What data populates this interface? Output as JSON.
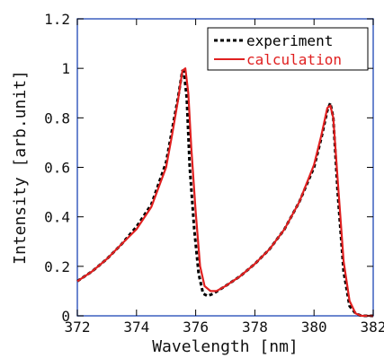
{
  "chart_data": {
    "type": "line",
    "xlabel": "Wavelength [nm]",
    "ylabel": "Intensity [arb.unit]",
    "xlim": [
      372,
      382
    ],
    "ylim": [
      0,
      1.2
    ],
    "x_ticks": [
      372,
      374,
      376,
      378,
      380,
      382
    ],
    "x_tick_labels": [
      "372",
      "374",
      "376",
      "378",
      "380",
      "382"
    ],
    "y_ticks": [
      0,
      0.2,
      0.4,
      0.6,
      0.8,
      1,
      1.2
    ],
    "y_tick_labels": [
      "0",
      "0.2",
      "0.4",
      "0.6",
      "0.8",
      "1",
      "1.2"
    ],
    "grid": false,
    "legend_position": "top-right",
    "frame_color": "#3b5fbf",
    "series": [
      {
        "name": "experiment",
        "color": "#000000",
        "style": "dashed",
        "x": [
          372,
          372.5,
          373,
          373.5,
          374,
          374.5,
          375,
          375.2,
          375.4,
          375.55,
          375.6,
          375.7,
          375.8,
          375.95,
          376.1,
          376.25,
          376.4,
          376.6,
          377,
          377.5,
          378,
          378.5,
          379,
          379.5,
          380,
          380.25,
          380.45,
          380.55,
          380.65,
          380.8,
          381,
          381.2,
          381.4,
          381.6,
          382
        ],
        "y": [
          0.14,
          0.18,
          0.23,
          0.29,
          0.36,
          0.45,
          0.62,
          0.75,
          0.88,
          0.99,
          0.99,
          0.88,
          0.6,
          0.35,
          0.17,
          0.09,
          0.08,
          0.09,
          0.12,
          0.16,
          0.21,
          0.27,
          0.35,
          0.46,
          0.6,
          0.72,
          0.83,
          0.86,
          0.8,
          0.5,
          0.18,
          0.04,
          0.01,
          0,
          0
        ]
      },
      {
        "name": "calculation",
        "color": "#e02020",
        "style": "solid",
        "x": [
          372,
          372.5,
          373,
          373.5,
          374,
          374.5,
          375,
          375.2,
          375.4,
          375.55,
          375.65,
          375.75,
          375.85,
          376,
          376.15,
          376.3,
          376.5,
          376.7,
          377,
          377.5,
          378,
          378.5,
          379,
          379.5,
          380,
          380.25,
          380.45,
          380.55,
          380.65,
          380.8,
          381,
          381.2,
          381.4,
          381.6,
          382
        ],
        "y": [
          0.14,
          0.18,
          0.23,
          0.29,
          0.35,
          0.44,
          0.6,
          0.73,
          0.87,
          0.99,
          1.0,
          0.9,
          0.68,
          0.42,
          0.2,
          0.12,
          0.1,
          0.1,
          0.12,
          0.16,
          0.21,
          0.27,
          0.35,
          0.46,
          0.61,
          0.73,
          0.84,
          0.85,
          0.8,
          0.55,
          0.22,
          0.06,
          0.01,
          0,
          0
        ]
      }
    ]
  }
}
